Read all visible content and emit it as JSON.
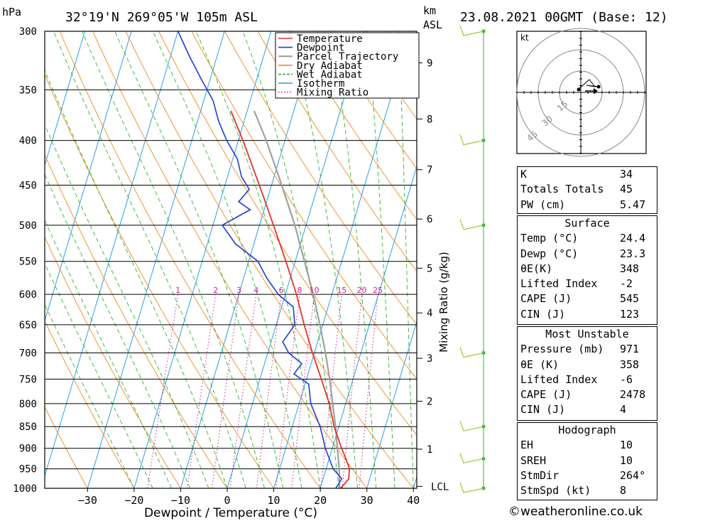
{
  "header": {
    "pressure_unit": "hPa",
    "location": "32°19'N  269°05'W  105m  ASL",
    "height_unit_km": "km",
    "height_unit_asl": "ASL",
    "datetime": "23.08.2021  00GMT  (Base: 12)"
  },
  "chart_data": {
    "type": "skew-t",
    "xlabel": "Dewpoint / Temperature (°C)",
    "right_axis_label": "Mixing Ratio (g/kg)",
    "pressure_levels": [
      300,
      350,
      400,
      450,
      500,
      550,
      600,
      650,
      700,
      750,
      800,
      850,
      900,
      950,
      1000
    ],
    "temperature_ticks": [
      -30,
      -20,
      -10,
      0,
      10,
      20,
      30,
      40
    ],
    "height_ticks_km": [
      {
        "label": "9",
        "p": 326
      },
      {
        "label": "8",
        "p": 378
      },
      {
        "label": "7",
        "p": 432
      },
      {
        "label": "6",
        "p": 492
      },
      {
        "label": "5",
        "p": 560
      },
      {
        "label": "4",
        "p": 630
      },
      {
        "label": "3",
        "p": 710
      },
      {
        "label": "2",
        "p": 795
      },
      {
        "label": "1",
        "p": 902
      },
      {
        "label": "LCL",
        "p": 995
      }
    ],
    "mixing_ratio_labels": [
      "1",
      "2",
      "3",
      "4",
      "6",
      "8",
      "10",
      "15",
      "20",
      "25"
    ],
    "mixing_ratio_values": [
      1,
      2,
      3,
      4,
      6,
      8,
      10,
      15,
      20,
      25
    ],
    "legend": [
      {
        "name": "Temperature",
        "color": "#e8302a",
        "style": "solid"
      },
      {
        "name": "Dewpoint",
        "color": "#1a3fd6",
        "style": "solid"
      },
      {
        "name": "Parcel Trajectory",
        "color": "#a0a0a0",
        "style": "solid"
      },
      {
        "name": "Dry Adiabat",
        "color": "#f08a1e",
        "style": "solid"
      },
      {
        "name": "Wet Adiabat",
        "color": "#2fb52f",
        "style": "dashed"
      },
      {
        "name": "Isotherm",
        "color": "#2a9ee8",
        "style": "solid"
      },
      {
        "name": "Mixing Ratio",
        "color": "#d02090",
        "style": "dotted"
      }
    ],
    "temperature_profile": [
      {
        "p": 1000,
        "t": 24.4
      },
      {
        "p": 975,
        "t": 25.5
      },
      {
        "p": 950,
        "t": 25.0
      },
      {
        "p": 925,
        "t": 23.6
      },
      {
        "p": 900,
        "t": 22.0
      },
      {
        "p": 850,
        "t": 19.0
      },
      {
        "p": 800,
        "t": 16.5
      },
      {
        "p": 750,
        "t": 13.2
      },
      {
        "p": 700,
        "t": 9.6
      },
      {
        "p": 650,
        "t": 6.0
      },
      {
        "p": 600,
        "t": 2.4
      },
      {
        "p": 550,
        "t": -2.0
      },
      {
        "p": 500,
        "t": -7.0
      },
      {
        "p": 450,
        "t": -12.6
      },
      {
        "p": 400,
        "t": -19.0
      },
      {
        "p": 370,
        "t": -23.5
      }
    ],
    "dewpoint_profile": [
      {
        "p": 1000,
        "t": 23.3
      },
      {
        "p": 975,
        "t": 24.0
      },
      {
        "p": 950,
        "t": 21.5
      },
      {
        "p": 900,
        "t": 18.5
      },
      {
        "p": 850,
        "t": 16.0
      },
      {
        "p": 800,
        "t": 12.5
      },
      {
        "p": 760,
        "t": 10.8
      },
      {
        "p": 740,
        "t": 7.0
      },
      {
        "p": 720,
        "t": 8.0
      },
      {
        "p": 700,
        "t": 4.5
      },
      {
        "p": 680,
        "t": 2.5
      },
      {
        "p": 650,
        "t": 4.0
      },
      {
        "p": 620,
        "t": 2.5
      },
      {
        "p": 600,
        "t": -1.5
      },
      {
        "p": 575,
        "t": -5.0
      },
      {
        "p": 550,
        "t": -8.0
      },
      {
        "p": 525,
        "t": -14.0
      },
      {
        "p": 500,
        "t": -18.0
      },
      {
        "p": 480,
        "t": -13.0
      },
      {
        "p": 470,
        "t": -16.0
      },
      {
        "p": 455,
        "t": -14.5
      },
      {
        "p": 440,
        "t": -17.0
      },
      {
        "p": 420,
        "t": -19.0
      },
      {
        "p": 400,
        "t": -22.5
      },
      {
        "p": 380,
        "t": -25.5
      },
      {
        "p": 360,
        "t": -28.0
      },
      {
        "p": 340,
        "t": -32.0
      },
      {
        "p": 320,
        "t": -36.0
      },
      {
        "p": 300,
        "t": -40.0
      }
    ],
    "parcel_profile": [
      {
        "p": 1000,
        "t": 24.4
      },
      {
        "p": 995,
        "t": 24.0
      },
      {
        "p": 950,
        "t": 22.8
      },
      {
        "p": 900,
        "t": 21.1
      },
      {
        "p": 850,
        "t": 19.3
      },
      {
        "p": 800,
        "t": 17.2
      },
      {
        "p": 750,
        "t": 15.0
      },
      {
        "p": 700,
        "t": 12.4
      },
      {
        "p": 650,
        "t": 9.4
      },
      {
        "p": 600,
        "t": 6.0
      },
      {
        "p": 550,
        "t": 2.0
      },
      {
        "p": 500,
        "t": -2.4
      },
      {
        "p": 450,
        "t": -7.8
      },
      {
        "p": 400,
        "t": -14.0
      },
      {
        "p": 370,
        "t": -18.5
      }
    ],
    "wind_barbs_p": [
      300,
      400,
      500,
      700,
      850,
      925,
      1000
    ]
  },
  "hodograph": {
    "unit": "kt",
    "ring_labels": [
      "15",
      "30",
      "45"
    ]
  },
  "indices": {
    "general": [
      {
        "label": "K",
        "value": "34"
      },
      {
        "label": "Totals Totals",
        "value": "45"
      },
      {
        "label": "PW (cm)",
        "value": "5.47"
      }
    ],
    "surface": {
      "title": "Surface",
      "rows": [
        {
          "label": "Temp (°C)",
          "value": "24.4"
        },
        {
          "label": "Dewp (°C)",
          "value": "23.3"
        },
        {
          "label": "θE(K)",
          "value": "348"
        },
        {
          "label": "Lifted Index",
          "value": "-2"
        },
        {
          "label": "CAPE (J)",
          "value": "545"
        },
        {
          "label": "CIN (J)",
          "value": "123"
        }
      ]
    },
    "most_unstable": {
      "title": "Most Unstable",
      "rows": [
        {
          "label": "Pressure (mb)",
          "value": "971"
        },
        {
          "label": "θE (K)",
          "value": "358"
        },
        {
          "label": "Lifted Index",
          "value": "-6"
        },
        {
          "label": "CAPE (J)",
          "value": "2478"
        },
        {
          "label": "CIN (J)",
          "value": "4"
        }
      ]
    },
    "hodograph": {
      "title": "Hodograph",
      "rows": [
        {
          "label": "EH",
          "value": "10"
        },
        {
          "label": "SREH",
          "value": "10"
        },
        {
          "label": "StmDir",
          "value": "264°"
        },
        {
          "label": "StmSpd (kt)",
          "value": "8"
        }
      ]
    }
  },
  "footer": {
    "copyright": "©weatheronline.co.uk"
  }
}
